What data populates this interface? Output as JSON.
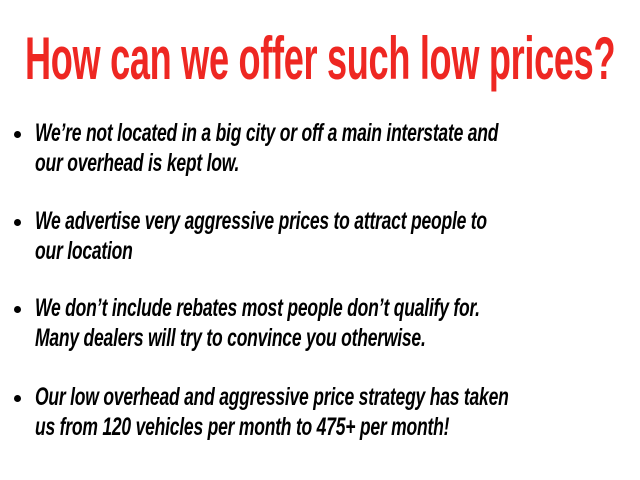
{
  "title": "How can we offer such low prices?",
  "title_color": "#ee2722",
  "bullets": [
    {
      "lines": [
        "We’re not located in a big city or off a main interstate and",
        "our overhead is kept low."
      ]
    },
    {
      "lines": [
        "We advertise very aggressive prices to attract people to",
        "our location"
      ]
    },
    {
      "lines": [
        "We don’t include rebates most people don’t qualify for.",
        "Many dealers will try to convince you otherwise."
      ]
    },
    {
      "lines": [
        "Our low overhead and aggressive price strategy has taken",
        "us from 120 vehicles per month to 475+ per month!"
      ]
    }
  ]
}
